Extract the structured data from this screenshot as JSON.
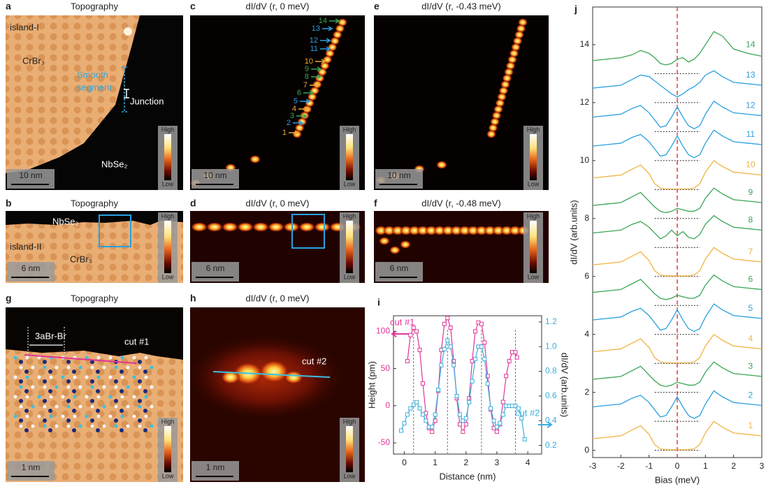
{
  "panels": [
    {
      "label": "a",
      "title": "Topography",
      "annotations": [
        "island-I",
        "CrBr₃",
        "Smooth",
        "segment",
        "Junction",
        "NbSe₂"
      ],
      "scale_bar": "10 nm",
      "colorbar": [
        "High",
        "Low"
      ]
    },
    {
      "label": "b",
      "title": "Topography",
      "annotations": [
        "NbSe₂",
        "island-II",
        "CrBr₃"
      ],
      "scale_bar": "6 nm",
      "colorbar": [
        "High",
        "Low"
      ]
    },
    {
      "label": "c",
      "title": "dI/dV (r, 0 meV)",
      "arrows": {
        "labels": [
          "1",
          "2",
          "3",
          "4",
          "5",
          "6",
          "7",
          "8",
          "9",
          "10",
          "11",
          "12",
          "13",
          "14"
        ],
        "colors": [
          "#f0a830",
          "#2aa0e0",
          "#3aa655",
          "#f0a830",
          "#2aa0e0",
          "#3aa655",
          "#f0a830",
          "#3aa655",
          "#3aa655",
          "#f0a830",
          "#2aa0e0",
          "#2aa0e0",
          "#2aa0e0",
          "#3aa655"
        ]
      },
      "scale_bar": "10 nm",
      "colorbar": [
        "High",
        "Low"
      ]
    },
    {
      "label": "d",
      "title": "dI/dV (r, 0 meV)",
      "scale_bar": "6 nm",
      "colorbar": [
        "High",
        "Low"
      ]
    },
    {
      "label": "e",
      "title": "dI/dV (r, -0.43 meV)",
      "scale_bar": "10 nm",
      "colorbar": [
        "High",
        "Low"
      ]
    },
    {
      "label": "f",
      "title": "dI/dV (r, -0.48 meV)",
      "scale_bar": "6 nm",
      "colorbar": [
        "High",
        "Low"
      ]
    },
    {
      "label": "g",
      "title": "Topography",
      "annotations": [
        "3aBr-Br",
        "cut #1"
      ],
      "scale_bar": "1 nm",
      "colorbar": [
        "High",
        "Low"
      ]
    },
    {
      "label": "h",
      "title": "dI/dV (r, 0 meV)",
      "annotations": [
        "cut #2"
      ],
      "scale_bar": "1 nm",
      "colorbar": [
        "High",
        "Low"
      ]
    }
  ],
  "chart_data": [
    {
      "type": "line",
      "label": "i",
      "x_label": "Distance (nm)",
      "y_label": "Height (pm)",
      "y2_label": "dI/dV (arb.units)",
      "xlim": [
        -0.35,
        4.45
      ],
      "xticks": [
        0,
        1,
        2,
        3,
        4
      ],
      "ylim": [
        -65,
        121
      ],
      "yticks": [
        -50,
        0,
        50,
        100
      ],
      "y2lim": [
        0.13,
        1.25
      ],
      "y2ticks": [
        0.2,
        0.4,
        0.6,
        0.8,
        {
          "value": 1,
          "label": "1.0"
        },
        1.2
      ],
      "vlines": [
        0.3,
        1.4,
        2.5,
        3.6
      ],
      "marker": "square",
      "series": [
        {
          "name": "cut #1",
          "color": "#e0359a",
          "x": [
            0.1,
            0.2,
            0.3,
            0.4,
            0.5,
            0.6,
            0.7,
            0.8,
            0.9,
            1.0,
            1.1,
            1.2,
            1.3,
            1.4,
            1.5,
            1.6,
            1.7,
            1.8,
            1.9,
            2.0,
            2.1,
            2.2,
            2.3,
            2.4,
            2.5,
            2.6,
            2.7,
            2.8,
            2.9,
            3.0,
            3.1,
            3.2,
            3.3,
            3.4,
            3.5,
            3.6,
            3.65
          ],
          "values": [
            60,
            95,
            105,
            100,
            75,
            30,
            -10,
            -30,
            -35,
            -20,
            20,
            75,
            110,
            118,
            105,
            60,
            10,
            -25,
            -35,
            -25,
            10,
            60,
            100,
            112,
            110,
            85,
            40,
            -5,
            -30,
            -35,
            -25,
            5,
            40,
            60,
            72,
            72,
            65
          ]
        },
        {
          "name": "cut #2",
          "color": "#3aaedc",
          "axis": "y2",
          "x": [
            -0.1,
            0.0,
            0.1,
            0.2,
            0.3,
            0.4,
            0.5,
            0.6,
            0.7,
            0.8,
            0.9,
            1.0,
            1.1,
            1.2,
            1.3,
            1.4,
            1.5,
            1.6,
            1.7,
            1.8,
            1.9,
            2.0,
            2.1,
            2.2,
            2.3,
            2.4,
            2.5,
            2.6,
            2.7,
            2.8,
            2.9,
            3.0,
            3.1,
            3.2,
            3.3,
            3.4,
            3.5,
            3.6,
            3.7,
            3.8,
            3.9
          ],
          "values": [
            0.32,
            0.38,
            0.45,
            0.5,
            0.53,
            0.55,
            0.5,
            0.45,
            0.4,
            0.35,
            0.35,
            0.45,
            0.65,
            0.85,
            0.98,
            1.05,
            1.0,
            0.85,
            0.6,
            0.45,
            0.4,
            0.42,
            0.55,
            0.72,
            0.9,
            1.0,
            1.0,
            0.9,
            0.7,
            0.5,
            0.4,
            0.35,
            0.38,
            0.45,
            0.52,
            0.52,
            0.52,
            0.52,
            0.5,
            0.42,
            0.25
          ]
        }
      ]
    },
    {
      "type": "line",
      "label": "j",
      "x_label": "Bias (meV)",
      "y_label": "dI/dV (arb.units)",
      "xlim": [
        -3,
        3
      ],
      "xticks": [
        -3,
        -2,
        -1,
        0,
        1,
        2,
        3
      ],
      "ylim": [
        -0.25,
        15.3
      ],
      "yticks": [
        0,
        2,
        4,
        6,
        8,
        10,
        12,
        14
      ],
      "vline": 0,
      "baselines": [
        0,
        1,
        2,
        3,
        4,
        5,
        6,
        7,
        8,
        9,
        10,
        11,
        12,
        13
      ],
      "baseline_span": [
        -0.8,
        0.8
      ],
      "x": [
        -3,
        -2.5,
        -2,
        -1.6,
        -1.3,
        -1,
        -0.8,
        -0.6,
        -0.4,
        -0.2,
        0,
        0.2,
        0.4,
        0.6,
        0.8,
        1,
        1.3,
        1.6,
        2,
        2.5,
        3
      ],
      "series": [
        {
          "name": "1",
          "color": "#f0b443",
          "values": [
            0.4,
            0.45,
            0.5,
            0.7,
            0.85,
            0.55,
            0.2,
            0.05,
            0.02,
            0.02,
            0.02,
            0.02,
            0.02,
            0.05,
            0.2,
            0.6,
            1.0,
            0.8,
            0.6,
            0.55,
            0.5
          ]
        },
        {
          "name": "2",
          "color": "#2aa0e0",
          "values": [
            1.5,
            1.55,
            1.6,
            1.8,
            1.9,
            1.65,
            1.4,
            1.15,
            1.2,
            1.5,
            1.85,
            1.5,
            1.2,
            1.1,
            1.2,
            1.6,
            2.05,
            1.85,
            1.65,
            1.6,
            1.55
          ]
        },
        {
          "name": "3",
          "color": "#3aa655",
          "values": [
            2.45,
            2.5,
            2.55,
            2.75,
            2.9,
            2.6,
            2.4,
            2.25,
            2.2,
            2.25,
            2.35,
            2.3,
            2.25,
            2.25,
            2.35,
            2.7,
            3.05,
            2.85,
            2.65,
            2.6,
            2.55
          ]
        },
        {
          "name": "4",
          "color": "#f0b443",
          "values": [
            3.4,
            3.45,
            3.5,
            3.7,
            3.85,
            3.55,
            3.2,
            3.05,
            3.02,
            3.02,
            3.02,
            3.02,
            3.02,
            3.05,
            3.2,
            3.6,
            4.0,
            3.8,
            3.6,
            3.55,
            3.5
          ]
        },
        {
          "name": "5",
          "color": "#2aa0e0",
          "values": [
            4.5,
            4.55,
            4.6,
            4.8,
            4.9,
            4.65,
            4.4,
            4.15,
            4.2,
            4.5,
            4.85,
            4.5,
            4.2,
            4.1,
            4.2,
            4.6,
            5.05,
            4.85,
            4.65,
            4.6,
            4.55
          ]
        },
        {
          "name": "6",
          "color": "#3aa655",
          "values": [
            5.45,
            5.5,
            5.55,
            5.75,
            5.9,
            5.6,
            5.4,
            5.25,
            5.2,
            5.25,
            5.35,
            5.3,
            5.25,
            5.25,
            5.35,
            5.7,
            6.05,
            5.85,
            5.65,
            5.6,
            5.55
          ]
        },
        {
          "name": "7",
          "color": "#f0b443",
          "values": [
            6.4,
            6.45,
            6.5,
            6.7,
            6.85,
            6.55,
            6.2,
            6.05,
            6.02,
            6.02,
            6.02,
            6.02,
            6.02,
            6.05,
            6.2,
            6.6,
            7.0,
            6.8,
            6.6,
            6.55,
            6.5
          ]
        },
        {
          "name": "8",
          "color": "#3aa655",
          "values": [
            7.5,
            7.55,
            7.6,
            7.8,
            7.9,
            7.7,
            7.5,
            7.3,
            7.4,
            7.6,
            7.4,
            7.55,
            7.35,
            7.3,
            7.45,
            7.8,
            8.1,
            7.9,
            7.7,
            7.65,
            7.6
          ]
        },
        {
          "name": "9",
          "color": "#3aa655",
          "values": [
            8.45,
            8.5,
            8.55,
            8.75,
            8.9,
            8.6,
            8.4,
            8.25,
            8.2,
            8.25,
            8.35,
            8.3,
            8.25,
            8.25,
            8.35,
            8.7,
            9.05,
            8.85,
            8.65,
            8.6,
            8.55
          ]
        },
        {
          "name": "10",
          "color": "#f0b443",
          "values": [
            9.4,
            9.45,
            9.5,
            9.7,
            9.85,
            9.55,
            9.2,
            9.05,
            9.02,
            9.02,
            9.02,
            9.02,
            9.02,
            9.05,
            9.2,
            9.6,
            10.0,
            9.8,
            9.6,
            9.55,
            9.5
          ]
        },
        {
          "name": "11",
          "color": "#2aa0e0",
          "values": [
            10.5,
            10.55,
            10.6,
            10.8,
            10.9,
            10.65,
            10.4,
            10.15,
            10.2,
            10.5,
            10.85,
            10.5,
            10.2,
            10.1,
            10.2,
            10.6,
            11.05,
            10.85,
            10.65,
            10.6,
            10.55
          ]
        },
        {
          "name": "12",
          "color": "#2aa0e0",
          "values": [
            11.5,
            11.55,
            11.6,
            11.8,
            11.9,
            11.65,
            11.4,
            11.15,
            11.2,
            11.5,
            11.85,
            11.5,
            11.2,
            11.1,
            11.2,
            11.6,
            12.05,
            11.85,
            11.65,
            11.6,
            11.55
          ]
        },
        {
          "name": "13",
          "color": "#2aa0e0",
          "values": [
            12.5,
            12.55,
            12.6,
            12.8,
            12.95,
            12.9,
            12.75,
            12.6,
            12.45,
            12.3,
            12.2,
            12.3,
            12.45,
            12.55,
            12.7,
            12.95,
            13.1,
            12.9,
            12.7,
            12.65,
            12.6
          ]
        },
        {
          "name": "14",
          "color": "#3aa655",
          "values": [
            13.45,
            13.5,
            13.55,
            13.65,
            13.8,
            13.7,
            13.55,
            13.35,
            13.3,
            13.35,
            13.5,
            13.55,
            13.4,
            13.5,
            13.7,
            14.0,
            14.45,
            14.3,
            13.85,
            13.7,
            13.6
          ]
        }
      ]
    }
  ]
}
